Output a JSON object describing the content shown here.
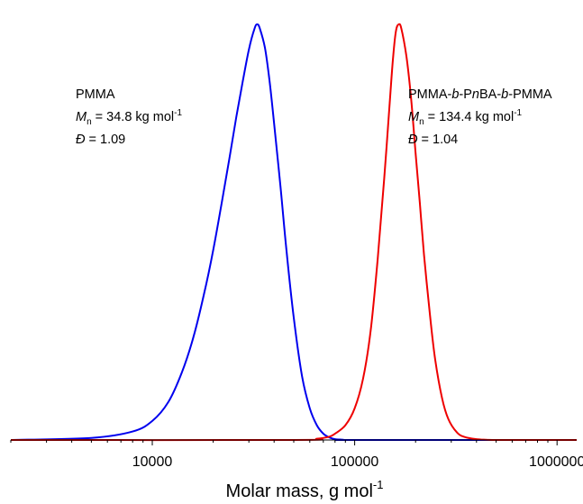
{
  "chart_data": {
    "type": "line",
    "xlabel": "Molar mass, g mol",
    "xlabel_sup": "-1",
    "ylabel": "",
    "x_scale": "log",
    "xlim": [
      2000,
      1250000
    ],
    "ylim": [
      0,
      1.0
    ],
    "grid": false,
    "legend": "none",
    "x_ticks": [
      {
        "value": 10000,
        "label": "10000"
      },
      {
        "value": 100000,
        "label": "100000"
      },
      {
        "value": 1000000,
        "label": "1000000"
      }
    ],
    "series": [
      {
        "color": "#0000ee",
        "x": [
          2000,
          5000,
          8000,
          10000,
          12000,
          14000,
          16000,
          18000,
          20000,
          22000,
          24000,
          26000,
          28000,
          30000,
          32000,
          33000,
          34000,
          36000,
          38000,
          40000,
          43000,
          46000,
          50000,
          55000,
          60000,
          65000,
          70000,
          75000,
          80000,
          85000,
          90000,
          100000,
          1250000
        ],
        "y": [
          0.0,
          0.005,
          0.02,
          0.045,
          0.09,
          0.16,
          0.245,
          0.345,
          0.45,
          0.56,
          0.665,
          0.765,
          0.85,
          0.925,
          0.975,
          0.985,
          0.975,
          0.93,
          0.85,
          0.75,
          0.6,
          0.45,
          0.29,
          0.15,
          0.075,
          0.035,
          0.015,
          0.006,
          0.002,
          0.001,
          0.0,
          0.0,
          0.0
        ]
      },
      {
        "color": "#ee0000",
        "x": [
          2000,
          50000,
          65000,
          75000,
          80000,
          90000,
          100000,
          110000,
          120000,
          130000,
          140000,
          150000,
          155000,
          160000,
          165000,
          170000,
          180000,
          190000,
          200000,
          210000,
          220000,
          235000,
          250000,
          270000,
          290000,
          320000,
          350000,
          400000,
          450000,
          500000,
          600000,
          1250000
        ],
        "y": [
          0.0,
          0.0,
          0.003,
          0.008,
          0.015,
          0.035,
          0.075,
          0.145,
          0.26,
          0.43,
          0.62,
          0.82,
          0.91,
          0.97,
          0.985,
          0.975,
          0.91,
          0.81,
          0.68,
          0.56,
          0.44,
          0.3,
          0.19,
          0.1,
          0.05,
          0.018,
          0.007,
          0.002,
          0.0005,
          0.0,
          0.0,
          0.0
        ]
      }
    ],
    "annotations": [
      {
        "lines": [
          {
            "text": "PMMA"
          },
          {
            "prefix": "M",
            "sub": "n",
            "text": " = 34.8 kg mol",
            "sup": "-1"
          },
          {
            "prefix": "Đ",
            "text": " = 1.09"
          }
        ]
      },
      {
        "lines": [
          {
            "parts": [
              "PMMA-",
              "b",
              "-P",
              "n",
              "BA-",
              "b",
              "-PMMA"
            ]
          },
          {
            "prefix": "M",
            "sub": "n",
            "text": " = 134.4 kg mol",
            "sup": "-1"
          },
          {
            "prefix": "Đ",
            "text": " = 1.04"
          }
        ]
      }
    ]
  }
}
